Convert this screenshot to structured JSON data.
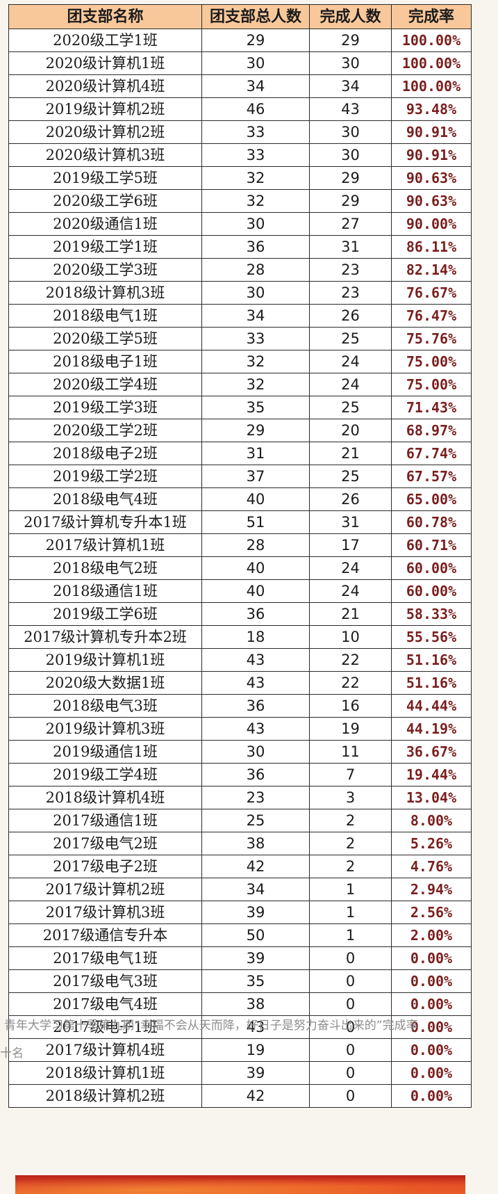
{
  "table": {
    "headers": [
      "团支部名称",
      "团支部总人数",
      "完成人数",
      "完成率"
    ],
    "rows": [
      [
        "2020级工学1班",
        "29",
        "29",
        "100.00%"
      ],
      [
        "2020级计算机1班",
        "30",
        "30",
        "100.00%"
      ],
      [
        "2020级计算机4班",
        "34",
        "34",
        "100.00%"
      ],
      [
        "2019级计算机2班",
        "46",
        "43",
        "93.48%"
      ],
      [
        "2020级计算机2班",
        "33",
        "30",
        "90.91%"
      ],
      [
        "2020级计算机3班",
        "33",
        "30",
        "90.91%"
      ],
      [
        "2019级工学5班",
        "32",
        "29",
        "90.63%"
      ],
      [
        "2020级工学6班",
        "32",
        "29",
        "90.63%"
      ],
      [
        "2020级通信1班",
        "30",
        "27",
        "90.00%"
      ],
      [
        "2019级工学1班",
        "36",
        "31",
        "86.11%"
      ],
      [
        "2020级工学3班",
        "28",
        "23",
        "82.14%"
      ],
      [
        "2018级计算机3班",
        "30",
        "23",
        "76.67%"
      ],
      [
        "2018级电气1班",
        "34",
        "26",
        "76.47%"
      ],
      [
        "2020级工学5班",
        "33",
        "25",
        "75.76%"
      ],
      [
        "2018级电子1班",
        "32",
        "24",
        "75.00%"
      ],
      [
        "2020级工学4班",
        "32",
        "24",
        "75.00%"
      ],
      [
        "2019级工学3班",
        "35",
        "25",
        "71.43%"
      ],
      [
        "2020级工学2班",
        "29",
        "20",
        "68.97%"
      ],
      [
        "2018级电子2班",
        "31",
        "21",
        "67.74%"
      ],
      [
        "2019级工学2班",
        "37",
        "25",
        "67.57%"
      ],
      [
        "2018级电气4班",
        "40",
        "26",
        "65.00%"
      ],
      [
        "2017级计算机专升本1班",
        "51",
        "31",
        "60.78%"
      ],
      [
        "2017级计算机1班",
        "28",
        "17",
        "60.71%"
      ],
      [
        "2018级电气2班",
        "40",
        "24",
        "60.00%"
      ],
      [
        "2018级通信1班",
        "40",
        "24",
        "60.00%"
      ],
      [
        "2019级工学6班",
        "36",
        "21",
        "58.33%"
      ],
      [
        "2017级计算机专升本2班",
        "18",
        "10",
        "55.56%"
      ],
      [
        "2019级计算机1班",
        "43",
        "22",
        "51.16%"
      ],
      [
        "2020级大数据1班",
        "43",
        "22",
        "51.16%"
      ],
      [
        "2018级电气3班",
        "36",
        "16",
        "44.44%"
      ],
      [
        "2019级计算机3班",
        "43",
        "19",
        "44.19%"
      ],
      [
        "2019级通信1班",
        "30",
        "11",
        "36.67%"
      ],
      [
        "2019级工学4班",
        "36",
        "7",
        "19.44%"
      ],
      [
        "2018级计算机4班",
        "23",
        "3",
        "13.04%"
      ],
      [
        "2017级通信1班",
        "25",
        "2",
        "8.00%"
      ],
      [
        "2017级电气2班",
        "38",
        "2",
        "5.26%"
      ],
      [
        "2017级电子2班",
        "42",
        "2",
        "4.76%"
      ],
      [
        "2017级计算机2班",
        "34",
        "1",
        "2.94%"
      ],
      [
        "2017级计算机3班",
        "39",
        "1",
        "2.56%"
      ],
      [
        "2017级通信专升本",
        "50",
        "1",
        "2.00%"
      ],
      [
        "2017级电气1班",
        "39",
        "0",
        "0.00%"
      ],
      [
        "2017级电气3班",
        "35",
        "0",
        "0.00%"
      ],
      [
        "2017级电气4班",
        "38",
        "0",
        "0.00%"
      ],
      [
        "2017级电子1班",
        "43",
        "0",
        "0.00%"
      ],
      [
        "2017级计算机4班",
        "19",
        "0",
        "0.00%"
      ],
      [
        "2018级计算机1班",
        "39",
        "0",
        "0.00%"
      ],
      [
        "2018级计算机2班",
        "42",
        "0",
        "0.00%"
      ]
    ]
  },
  "caption": {
    "line1": "青年大学习第十季第九期“幸福不会从天而降，好日子是努力奋斗出来的”完成率",
    "line2": "十名"
  },
  "colors": {
    "header_bg": "#f9c89a",
    "rate_text": "#7a1f1f",
    "caption_text": "#8d8d8d",
    "banner": "#c8301e"
  }
}
